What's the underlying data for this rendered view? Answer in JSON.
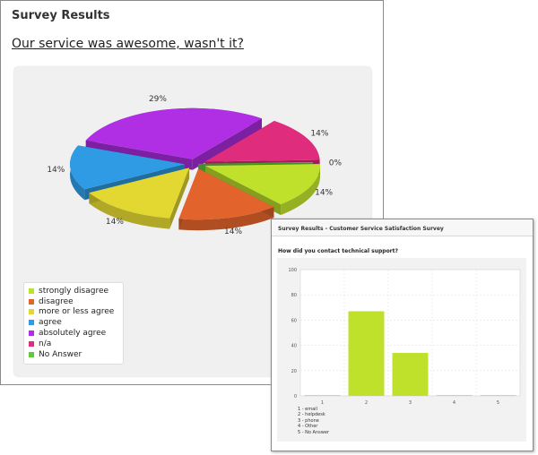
{
  "survey1": {
    "title": "Survey Results",
    "question": "Our service was awesome, wasn't it?"
  },
  "survey2": {
    "title": "Survey Results - Customer Service Satisfaction Survey",
    "question": "How did you contact technical support?",
    "legend": [
      "1 - email",
      "2 - helpdesk",
      "3 - phone",
      "4 - Other",
      "5 - No Answer"
    ]
  },
  "chart_data": [
    {
      "type": "pie",
      "categories": [
        "strongly disagree",
        "disagree",
        "more or less agree",
        "agree",
        "absolutely agree",
        "n/a",
        "No Answer"
      ],
      "values": [
        14,
        14,
        14,
        14,
        29,
        14,
        0
      ],
      "labels": [
        "14%",
        "14%",
        "14%",
        "14%",
        "29%",
        "14%",
        "0%"
      ],
      "colors": [
        "#bfe12b",
        "#e2642c",
        "#e2d831",
        "#2f9be4",
        "#b02ee4",
        "#e02c7c",
        "#62c93a"
      ],
      "legend_position": "bottom-left"
    },
    {
      "type": "bar",
      "categories": [
        "1",
        "2",
        "3",
        "4",
        "5"
      ],
      "values": [
        0,
        67,
        34,
        0,
        0
      ],
      "ylim": [
        0,
        100
      ],
      "yticks": [
        "0",
        "20",
        "40",
        "60",
        "80",
        "100"
      ],
      "grid": true,
      "color": "#bfe12b"
    }
  ]
}
